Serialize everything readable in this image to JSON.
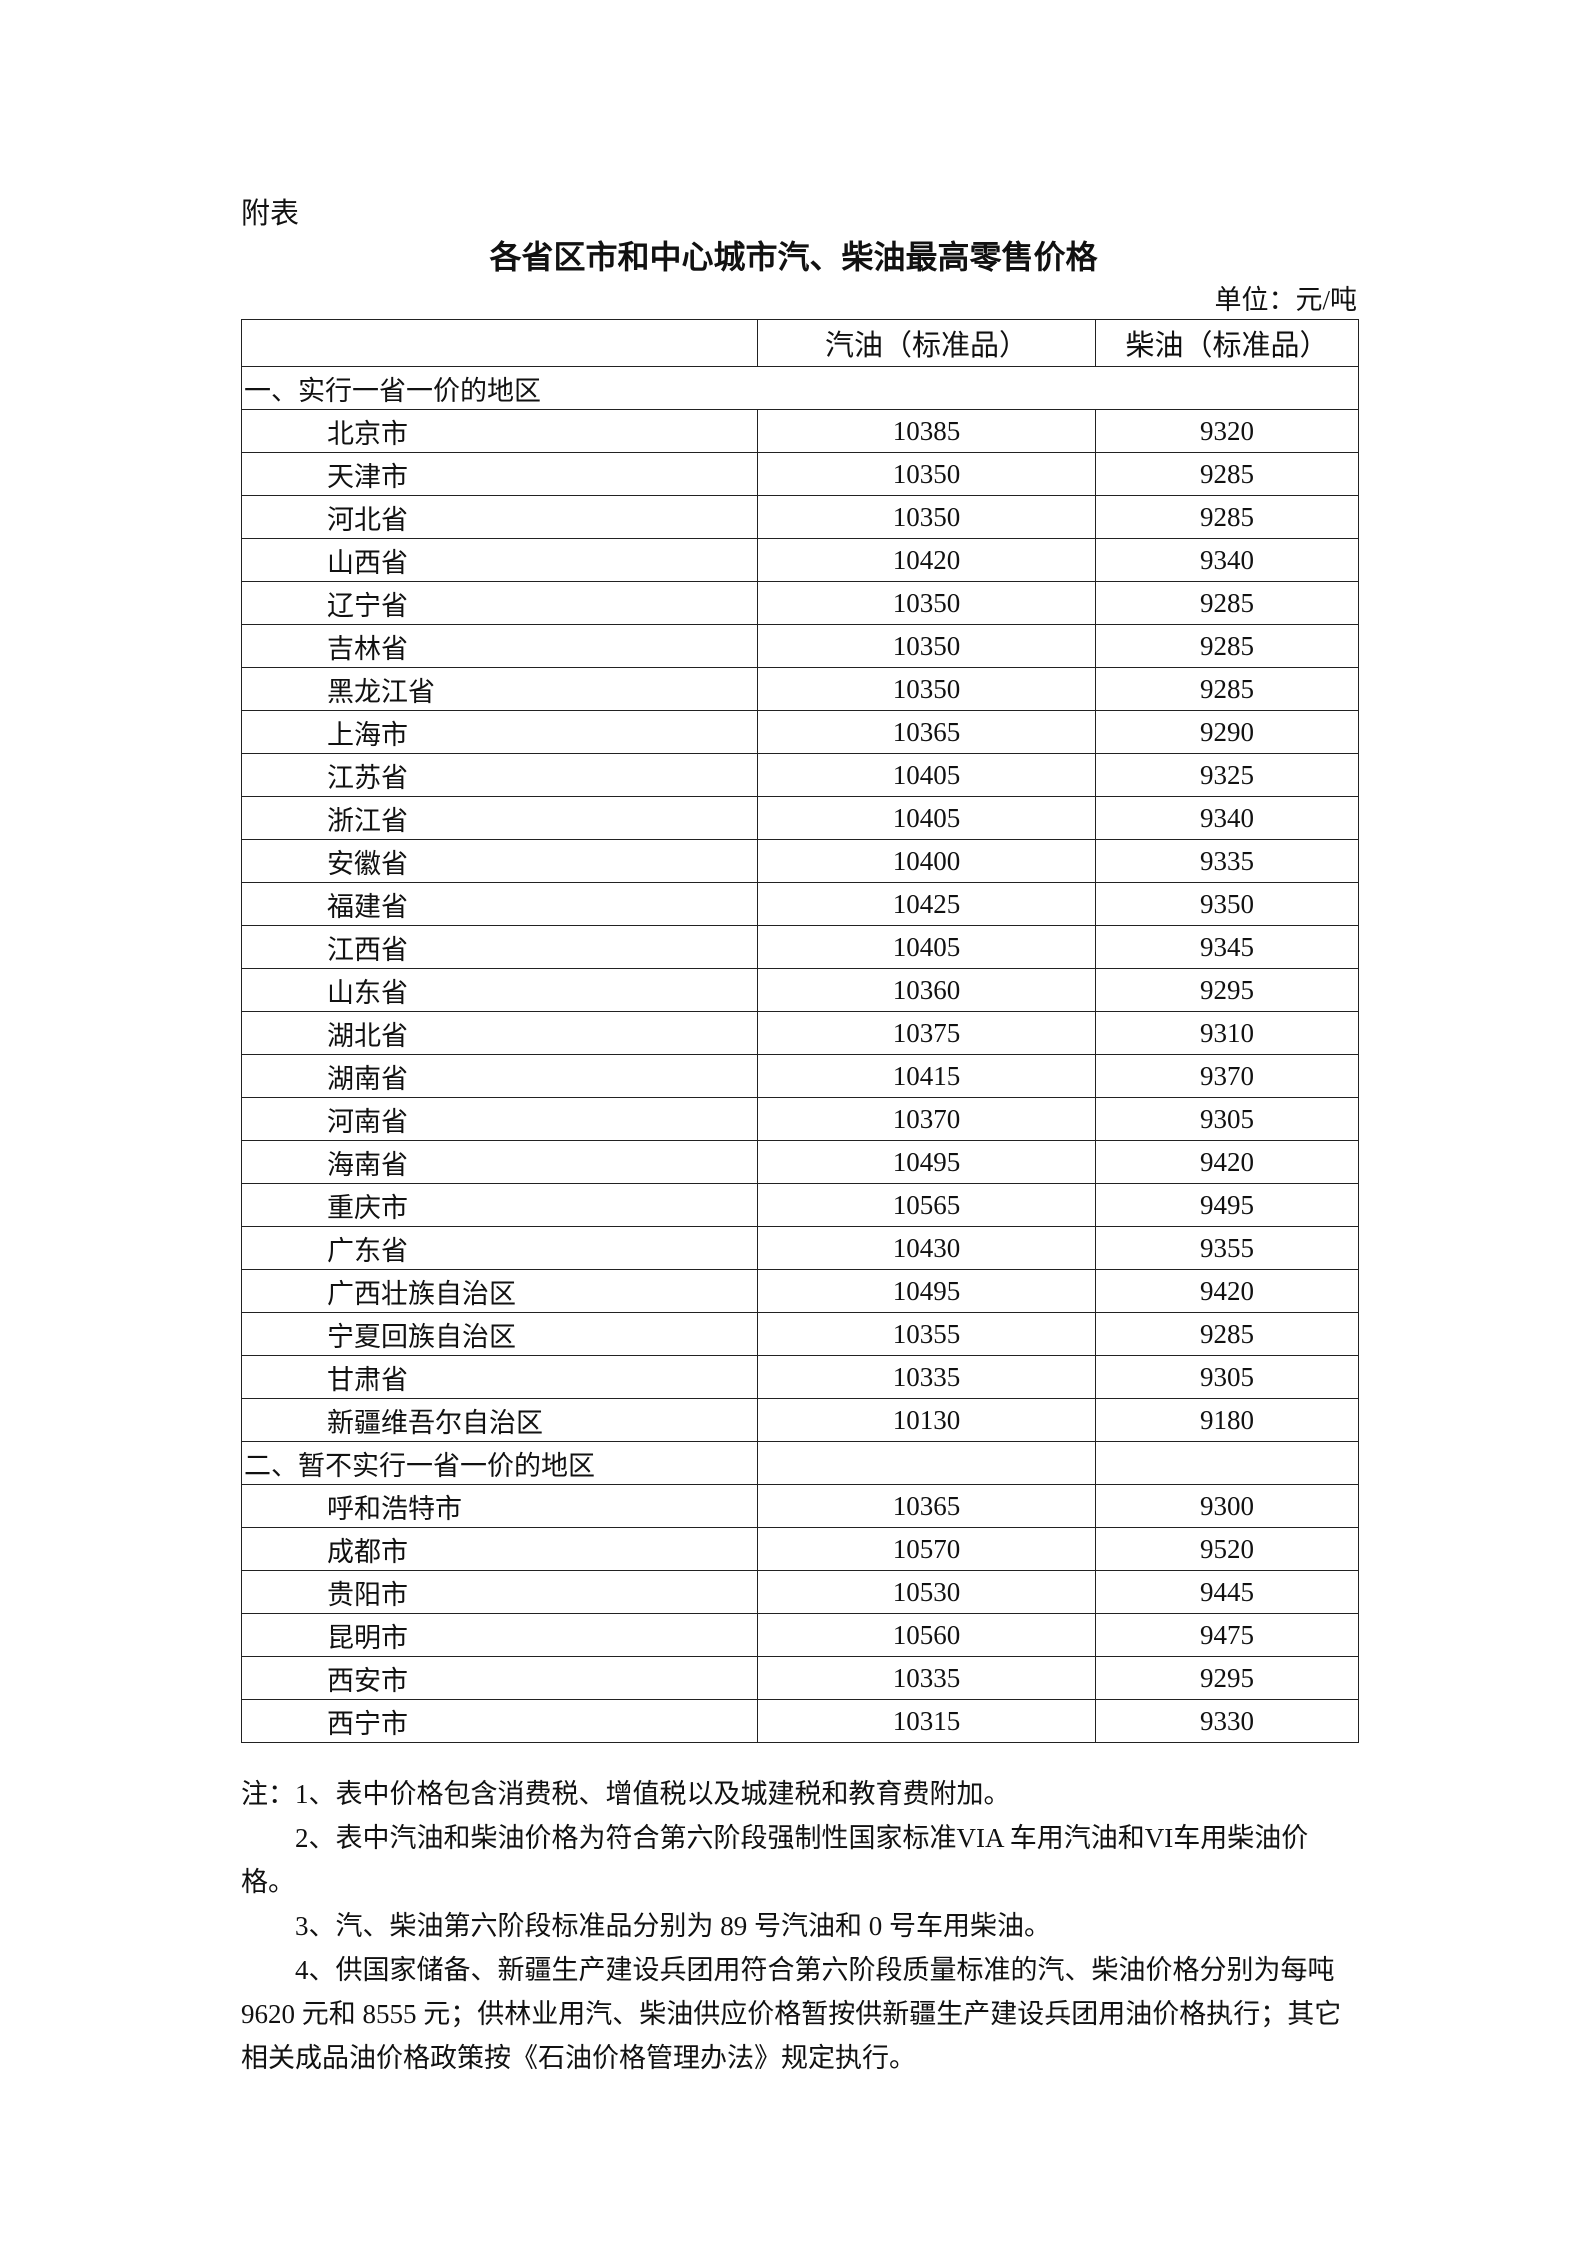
{
  "annex_label": "附表",
  "title": "各省区市和中心城市汽、柴油最高零售价格",
  "unit": "单位：元/吨",
  "table": {
    "headers": [
      "",
      "汽油（标准品）",
      "柴油（标准品）"
    ],
    "sections": [
      {
        "label": "一、实行一省一价的地区",
        "rows": [
          [
            "北京市",
            "10385",
            "9320"
          ],
          [
            "天津市",
            "10350",
            "9285"
          ],
          [
            "河北省",
            "10350",
            "9285"
          ],
          [
            "山西省",
            "10420",
            "9340"
          ],
          [
            "辽宁省",
            "10350",
            "9285"
          ],
          [
            "吉林省",
            "10350",
            "9285"
          ],
          [
            "黑龙江省",
            "10350",
            "9285"
          ],
          [
            "上海市",
            "10365",
            "9290"
          ],
          [
            "江苏省",
            "10405",
            "9325"
          ],
          [
            "浙江省",
            "10405",
            "9340"
          ],
          [
            "安徽省",
            "10400",
            "9335"
          ],
          [
            "福建省",
            "10425",
            "9350"
          ],
          [
            "江西省",
            "10405",
            "9345"
          ],
          [
            "山东省",
            "10360",
            "9295"
          ],
          [
            "湖北省",
            "10375",
            "9310"
          ],
          [
            "湖南省",
            "10415",
            "9370"
          ],
          [
            "河南省",
            "10370",
            "9305"
          ],
          [
            "海南省",
            "10495",
            "9420"
          ],
          [
            "重庆市",
            "10565",
            "9495"
          ],
          [
            "广东省",
            "10430",
            "9355"
          ],
          [
            "广西壮族自治区",
            "10495",
            "9420"
          ],
          [
            "宁夏回族自治区",
            "10355",
            "9285"
          ],
          [
            "甘肃省",
            "10335",
            "9305"
          ],
          [
            "新疆维吾尔自治区",
            "10130",
            "9180"
          ]
        ]
      },
      {
        "label": "二、暂不实行一省一价的地区",
        "rows": [
          [
            "呼和浩特市",
            "10365",
            "9300"
          ],
          [
            "成都市",
            "10570",
            "9520"
          ],
          [
            "贵阳市",
            "10530",
            "9445"
          ],
          [
            "昆明市",
            "10560",
            "9475"
          ],
          [
            "西安市",
            "10335",
            "9295"
          ],
          [
            "西宁市",
            "10315",
            "9330"
          ]
        ]
      }
    ]
  },
  "notes": [
    "注：1、表中价格包含消费税、增值税以及城建税和教育费附加。",
    "2、表中汽油和柴油价格为符合第六阶段强制性国家标准VIA 车用汽油和VI车用柴油价格。",
    "3、汽、柴油第六阶段标准品分别为 89 号汽油和 0 号车用柴油。",
    "4、供国家储备、新疆生产建设兵团用符合第六阶段质量标准的汽、柴油价格分别为每吨 9620 元和 8555 元；供林业用汽、柴油供应价格暂按供新疆生产建设兵团用油价格执行；其它相关成品油价格政策按《石油价格管理办法》规定执行。"
  ]
}
